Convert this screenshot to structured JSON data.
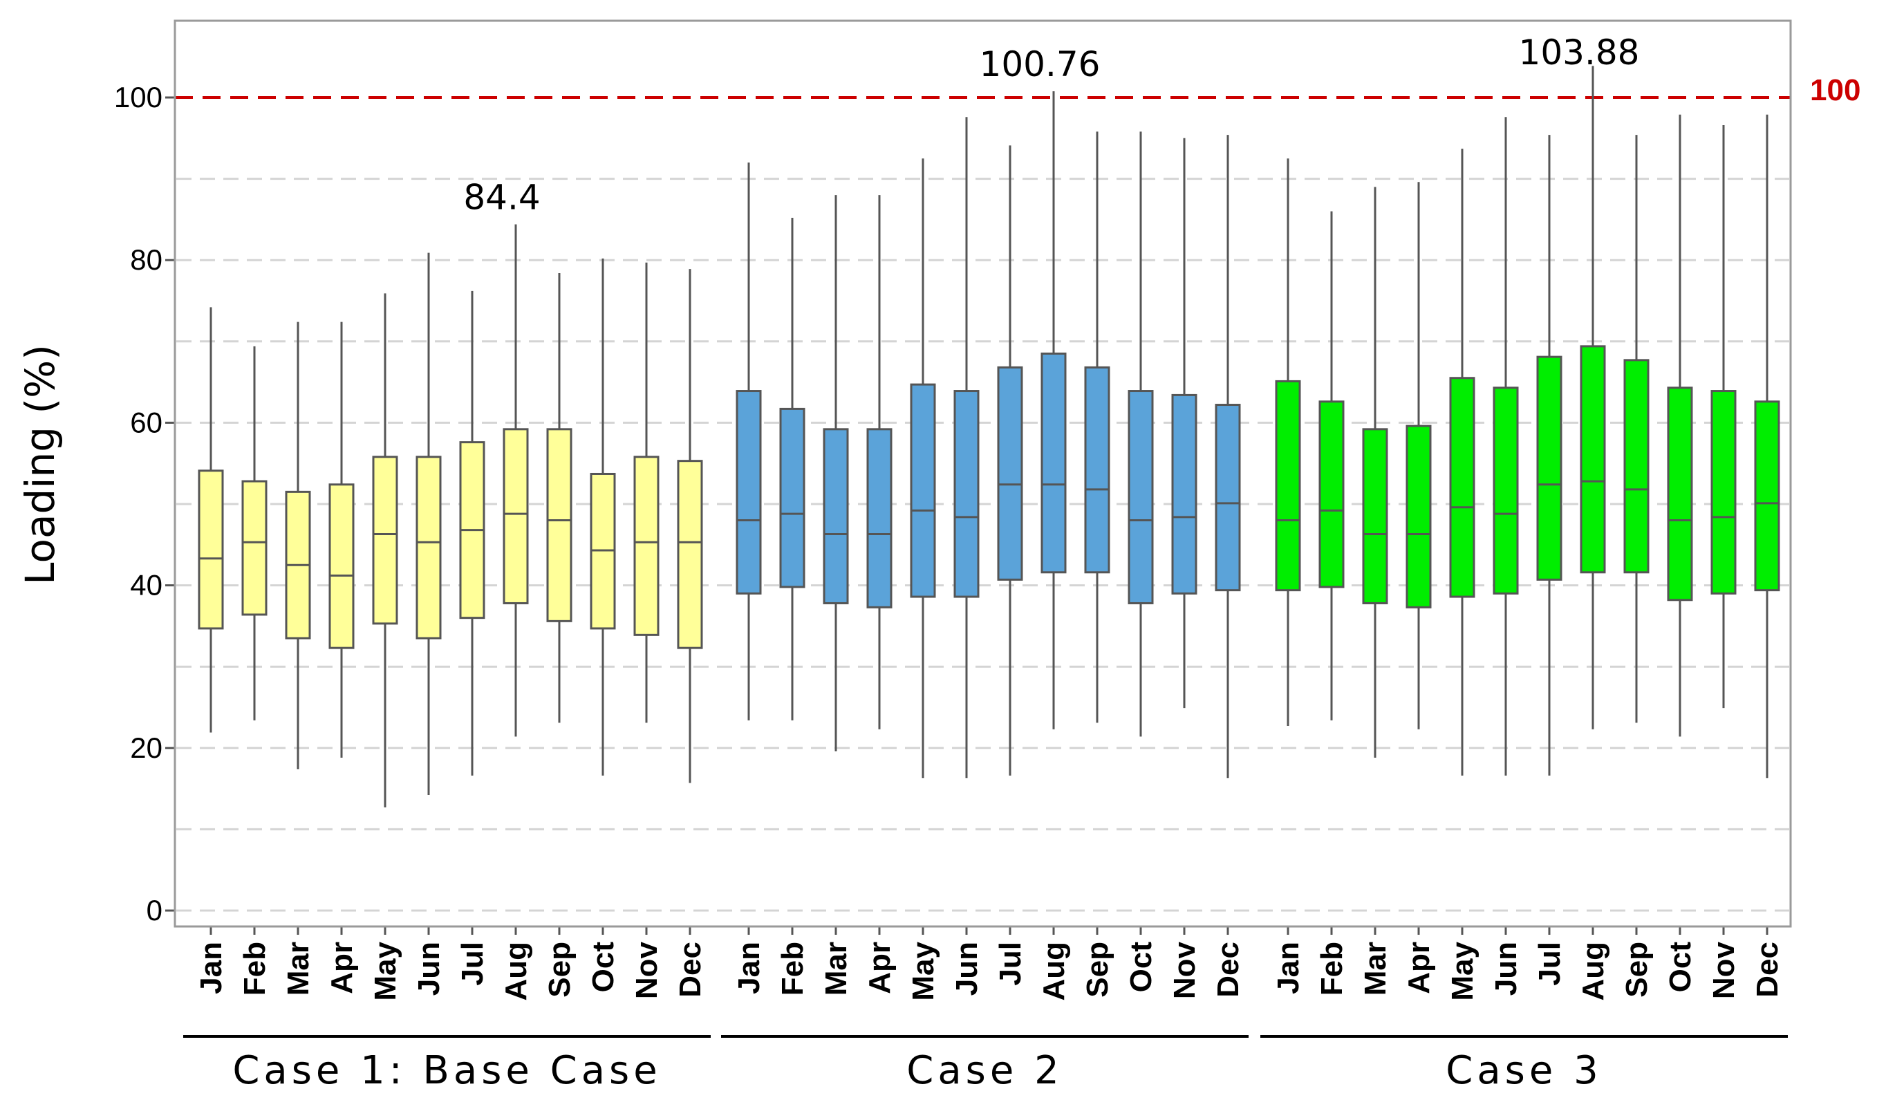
{
  "chart_data": {
    "type": "box",
    "ylabel": "Loading (%)",
    "ylim": [
      -2,
      110
    ],
    "yticks": [
      0,
      20,
      40,
      60,
      80,
      100
    ],
    "grid": "horizontal dashed every 10",
    "months": [
      "Jan",
      "Feb",
      "Mar",
      "Apr",
      "May",
      "Jun",
      "Jul",
      "Aug",
      "Sep",
      "Oct",
      "Nov",
      "Dec"
    ],
    "reference_line": {
      "value": 100,
      "label": "100",
      "color": "#cc0000"
    },
    "groups": [
      {
        "name": "Case 1: Base Case",
        "color": "#ffff99",
        "boxes": [
          {
            "month": "Jan",
            "min": 21.9,
            "q1": 34.7,
            "median": 43.3,
            "q3": 54.1,
            "max": 74.2
          },
          {
            "month": "Feb",
            "min": 23.4,
            "q1": 36.4,
            "median": 45.3,
            "q3": 52.8,
            "max": 69.4
          },
          {
            "month": "Mar",
            "min": 17.4,
            "q1": 33.5,
            "median": 42.5,
            "q3": 51.5,
            "max": 72.4
          },
          {
            "month": "Apr",
            "min": 18.8,
            "q1": 32.3,
            "median": 41.2,
            "q3": 52.4,
            "max": 72.4
          },
          {
            "month": "May",
            "min": 12.7,
            "q1": 35.3,
            "median": 46.3,
            "q3": 55.8,
            "max": 75.9
          },
          {
            "month": "Jun",
            "min": 14.2,
            "q1": 33.5,
            "median": 45.3,
            "q3": 55.8,
            "max": 80.9
          },
          {
            "month": "Jul",
            "min": 16.6,
            "q1": 36.0,
            "median": 46.8,
            "q3": 57.6,
            "max": 76.2
          },
          {
            "month": "Aug",
            "min": 21.4,
            "q1": 37.8,
            "median": 48.8,
            "q3": 59.2,
            "max": 84.4
          },
          {
            "month": "Sep",
            "min": 23.1,
            "q1": 35.6,
            "median": 48.0,
            "q3": 59.2,
            "max": 78.4
          },
          {
            "month": "Oct",
            "min": 16.6,
            "q1": 34.7,
            "median": 44.3,
            "q3": 53.7,
            "max": 80.2
          },
          {
            "month": "Nov",
            "min": 23.1,
            "q1": 33.9,
            "median": 45.3,
            "q3": 55.8,
            "max": 79.7
          },
          {
            "month": "Dec",
            "min": 15.7,
            "q1": 32.3,
            "median": 45.3,
            "q3": 55.3,
            "max": 78.9
          }
        ],
        "annotation": {
          "month": "Aug",
          "text": "84.4"
        }
      },
      {
        "name": "Case 2",
        "color": "#5ba3d9",
        "boxes": [
          {
            "month": "Jan",
            "min": 23.4,
            "q1": 39.0,
            "median": 48.0,
            "q3": 63.9,
            "max": 92.0
          },
          {
            "month": "Feb",
            "min": 23.4,
            "q1": 39.8,
            "median": 48.8,
            "q3": 61.7,
            "max": 85.2
          },
          {
            "month": "Mar",
            "min": 19.6,
            "q1": 37.8,
            "median": 46.3,
            "q3": 59.2,
            "max": 88.0
          },
          {
            "month": "Apr",
            "min": 22.3,
            "q1": 37.3,
            "median": 46.3,
            "q3": 59.2,
            "max": 88.0
          },
          {
            "month": "May",
            "min": 16.3,
            "q1": 38.6,
            "median": 49.2,
            "q3": 64.7,
            "max": 92.5
          },
          {
            "month": "Jun",
            "min": 16.3,
            "q1": 38.6,
            "median": 48.4,
            "q3": 63.9,
            "max": 97.6
          },
          {
            "month": "Jul",
            "min": 16.6,
            "q1": 40.7,
            "median": 52.4,
            "q3": 66.8,
            "max": 94.1
          },
          {
            "month": "Aug",
            "min": 22.3,
            "q1": 41.6,
            "median": 52.4,
            "q3": 68.5,
            "max": 100.76
          },
          {
            "month": "Sep",
            "min": 23.1,
            "q1": 41.6,
            "median": 51.8,
            "q3": 66.8,
            "max": 95.8
          },
          {
            "month": "Oct",
            "min": 21.4,
            "q1": 37.8,
            "median": 48.0,
            "q3": 63.9,
            "max": 95.8
          },
          {
            "month": "Nov",
            "min": 24.9,
            "q1": 39.0,
            "median": 48.4,
            "q3": 63.4,
            "max": 95.0
          },
          {
            "month": "Dec",
            "min": 16.3,
            "q1": 39.4,
            "median": 50.1,
            "q3": 62.2,
            "max": 95.4
          }
        ],
        "annotation": {
          "month": "Aug",
          "text": "100.76"
        }
      },
      {
        "name": "Case 3",
        "color": "#00ee00",
        "boxes": [
          {
            "month": "Jan",
            "min": 22.7,
            "q1": 39.4,
            "median": 48.0,
            "q3": 65.1,
            "max": 92.5
          },
          {
            "month": "Feb",
            "min": 23.4,
            "q1": 39.8,
            "median": 49.2,
            "q3": 62.6,
            "max": 86.0
          },
          {
            "month": "Mar",
            "min": 18.8,
            "q1": 37.8,
            "median": 46.3,
            "q3": 59.2,
            "max": 89.0
          },
          {
            "month": "Apr",
            "min": 22.3,
            "q1": 37.3,
            "median": 46.3,
            "q3": 59.6,
            "max": 89.6
          },
          {
            "month": "May",
            "min": 16.6,
            "q1": 38.6,
            "median": 49.6,
            "q3": 65.5,
            "max": 93.7
          },
          {
            "month": "Jun",
            "min": 16.6,
            "q1": 39.0,
            "median": 48.8,
            "q3": 64.3,
            "max": 97.6
          },
          {
            "month": "Jul",
            "min": 16.6,
            "q1": 40.7,
            "median": 52.4,
            "q3": 68.1,
            "max": 95.4
          },
          {
            "month": "Aug",
            "min": 22.3,
            "q1": 41.6,
            "median": 52.8,
            "q3": 69.4,
            "max": 103.88
          },
          {
            "month": "Sep",
            "min": 23.1,
            "q1": 41.6,
            "median": 51.8,
            "q3": 67.7,
            "max": 95.4
          },
          {
            "month": "Oct",
            "min": 21.4,
            "q1": 38.2,
            "median": 48.0,
            "q3": 64.3,
            "max": 97.9
          },
          {
            "month": "Nov",
            "min": 24.9,
            "q1": 39.0,
            "median": 48.4,
            "q3": 63.9,
            "max": 96.6
          },
          {
            "month": "Dec",
            "min": 16.3,
            "q1": 39.4,
            "median": 50.1,
            "q3": 62.6,
            "max": 97.9
          }
        ],
        "annotation": {
          "month": "Aug",
          "text": "103.88"
        }
      }
    ]
  }
}
